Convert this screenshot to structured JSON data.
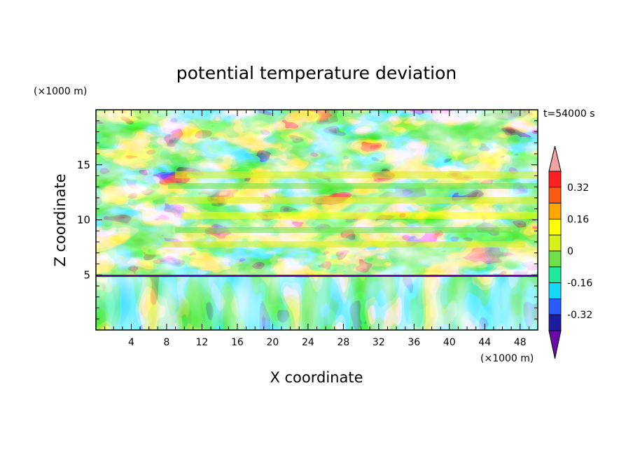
{
  "chart_data": {
    "type": "heatmap",
    "title": "potential temperature deviation",
    "time_label": "t=54000 s",
    "xlabel": "X coordinate",
    "ylabel": "Z coordinate",
    "x_unit": "(×1000 m)",
    "y_unit": "(×1000 m)",
    "xlim": [
      0,
      50
    ],
    "ylim": [
      0,
      20
    ],
    "x_ticks": [
      4,
      8,
      12,
      16,
      20,
      24,
      28,
      32,
      36,
      40,
      44,
      48
    ],
    "y_ticks": [
      5,
      10,
      15
    ],
    "colorbar": {
      "levels": [
        -0.4,
        -0.32,
        -0.24,
        -0.16,
        -0.08,
        0,
        0.08,
        0.16,
        0.24,
        0.32,
        0.4
      ],
      "tick_labels": [
        "0.32",
        "0.16",
        "0",
        "-0.16",
        "-0.32"
      ],
      "tick_values": [
        0.32,
        0.16,
        0,
        -0.16,
        -0.32
      ],
      "colors": [
        "#6a0aa8",
        "#1c1ca0",
        "#2a5cff",
        "#17d8ff",
        "#1ee89a",
        "#6fe04a",
        "#d8f01a",
        "#ffff00",
        "#ffa500",
        "#ff5a10",
        "#ff2020",
        "#f4a3a3"
      ],
      "extend": "both"
    }
  }
}
